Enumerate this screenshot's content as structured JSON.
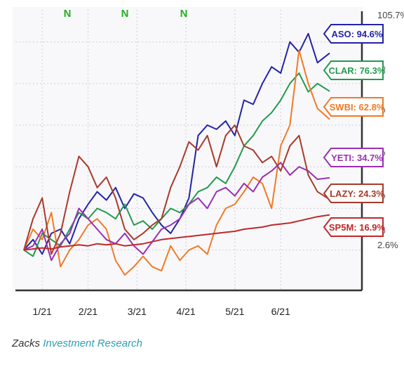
{
  "chart_data": {
    "type": "line",
    "x_ticks": [
      "1/21",
      "2/21",
      "3/21",
      "4/21",
      "5/21",
      "6/21"
    ],
    "flags": [
      "N",
      "N",
      "N"
    ],
    "y_axis_labels": [
      "105.7%",
      "%",
      "%",
      "%",
      "%",
      "%",
      "2.6%"
    ],
    "grid": true,
    "ylim": [
      -15,
      110
    ],
    "series": [
      {
        "name": "ASO",
        "label": "ASO: 94.6%",
        "color": "#2323a8",
        "x": [
          0,
          0.03,
          0.06,
          0.09,
          0.12,
          0.15,
          0.18,
          0.21,
          0.24,
          0.27,
          0.3,
          0.33,
          0.36,
          0.39,
          0.42,
          0.45,
          0.48,
          0.51,
          0.54,
          0.57,
          0.6,
          0.63,
          0.66,
          0.69,
          0.72,
          0.75,
          0.78,
          0.81,
          0.84,
          0.87,
          0.9,
          0.93,
          0.96,
          1.0
        ],
        "y": [
          0,
          5,
          -2,
          8,
          10,
          3,
          15,
          22,
          28,
          24,
          30,
          20,
          27,
          25,
          18,
          12,
          8,
          15,
          25,
          55,
          60,
          58,
          62,
          55,
          72,
          70,
          80,
          88,
          85,
          100,
          95,
          104,
          90,
          94.6
        ]
      },
      {
        "name": "CLAR",
        "label": "CLAR: 76.3%",
        "color": "#239a4e",
        "x": [
          0,
          0.03,
          0.06,
          0.09,
          0.12,
          0.15,
          0.18,
          0.21,
          0.24,
          0.27,
          0.3,
          0.33,
          0.36,
          0.39,
          0.42,
          0.45,
          0.48,
          0.51,
          0.54,
          0.57,
          0.6,
          0.63,
          0.66,
          0.69,
          0.72,
          0.75,
          0.78,
          0.81,
          0.84,
          0.87,
          0.9,
          0.93,
          0.96,
          1.0
        ],
        "y": [
          0,
          -3,
          8,
          5,
          2,
          10,
          18,
          15,
          20,
          18,
          15,
          22,
          12,
          14,
          10,
          15,
          20,
          18,
          22,
          28,
          30,
          35,
          32,
          40,
          50,
          55,
          62,
          66,
          72,
          80,
          85,
          76,
          80,
          76.3
        ]
      },
      {
        "name": "SWBI",
        "label": "SWBI: 62.8%",
        "color": "#f07a26",
        "x": [
          0,
          0.03,
          0.06,
          0.09,
          0.12,
          0.15,
          0.18,
          0.21,
          0.24,
          0.27,
          0.3,
          0.33,
          0.36,
          0.39,
          0.42,
          0.45,
          0.48,
          0.51,
          0.54,
          0.57,
          0.6,
          0.63,
          0.66,
          0.69,
          0.72,
          0.75,
          0.78,
          0.81,
          0.84,
          0.87,
          0.9,
          0.93,
          0.96,
          1.0
        ],
        "y": [
          0,
          10,
          5,
          18,
          -8,
          0,
          5,
          12,
          15,
          10,
          -5,
          -12,
          -8,
          -3,
          -8,
          -10,
          2,
          -5,
          0,
          2,
          -2,
          12,
          20,
          22,
          28,
          35,
          32,
          20,
          50,
          60,
          96,
          80,
          68,
          62.8
        ]
      },
      {
        "name": "YETI",
        "label": "YETI: 34.7%",
        "color": "#9a2fb4",
        "x": [
          0,
          0.03,
          0.06,
          0.09,
          0.12,
          0.15,
          0.18,
          0.21,
          0.24,
          0.27,
          0.3,
          0.33,
          0.36,
          0.39,
          0.42,
          0.45,
          0.48,
          0.51,
          0.54,
          0.57,
          0.6,
          0.63,
          0.66,
          0.69,
          0.72,
          0.75,
          0.78,
          0.81,
          0.84,
          0.87,
          0.9,
          0.93,
          0.96,
          1.0
        ],
        "y": [
          0,
          2,
          10,
          -5,
          3,
          8,
          20,
          15,
          10,
          5,
          3,
          8,
          2,
          -2,
          4,
          10,
          12,
          15,
          22,
          25,
          20,
          28,
          30,
          26,
          32,
          28,
          35,
          38,
          42,
          36,
          40,
          38,
          34,
          34.7
        ]
      },
      {
        "name": "LAZY",
        "label": "LAZY: 24.3%",
        "color": "#a83a2a",
        "x": [
          0,
          0.03,
          0.06,
          0.09,
          0.12,
          0.15,
          0.18,
          0.21,
          0.24,
          0.27,
          0.3,
          0.33,
          0.36,
          0.39,
          0.42,
          0.45,
          0.48,
          0.51,
          0.54,
          0.57,
          0.6,
          0.63,
          0.66,
          0.69,
          0.72,
          0.75,
          0.78,
          0.81,
          0.84,
          0.87,
          0.9,
          0.93,
          0.96,
          1.0
        ],
        "y": [
          0,
          15,
          25,
          -2,
          8,
          28,
          45,
          40,
          30,
          35,
          25,
          10,
          5,
          8,
          12,
          15,
          30,
          40,
          52,
          48,
          55,
          40,
          55,
          60,
          50,
          48,
          42,
          45,
          38,
          50,
          55,
          36,
          28,
          24.3
        ]
      },
      {
        "name": "SP5M",
        "label": "SP5M: 16.9%",
        "color": "#c0282a",
        "x": [
          0,
          0.03,
          0.06,
          0.09,
          0.12,
          0.15,
          0.18,
          0.21,
          0.24,
          0.27,
          0.3,
          0.33,
          0.36,
          0.39,
          0.42,
          0.45,
          0.48,
          0.51,
          0.54,
          0.57,
          0.6,
          0.63,
          0.66,
          0.69,
          0.72,
          0.75,
          0.78,
          0.81,
          0.84,
          0.87,
          0.9,
          0.93,
          0.96,
          1.0
        ],
        "y": [
          0,
          0.5,
          1,
          0.5,
          1.5,
          2,
          2.5,
          2,
          3,
          2.5,
          3,
          2,
          2.5,
          3,
          4,
          5,
          5.5,
          6,
          6.5,
          7,
          7.5,
          8,
          8.5,
          9,
          10,
          10.5,
          11,
          12,
          12.5,
          13,
          14,
          15,
          16,
          16.9
        ]
      }
    ]
  },
  "caption": {
    "source": "Zacks",
    "link": "Investment Research"
  }
}
